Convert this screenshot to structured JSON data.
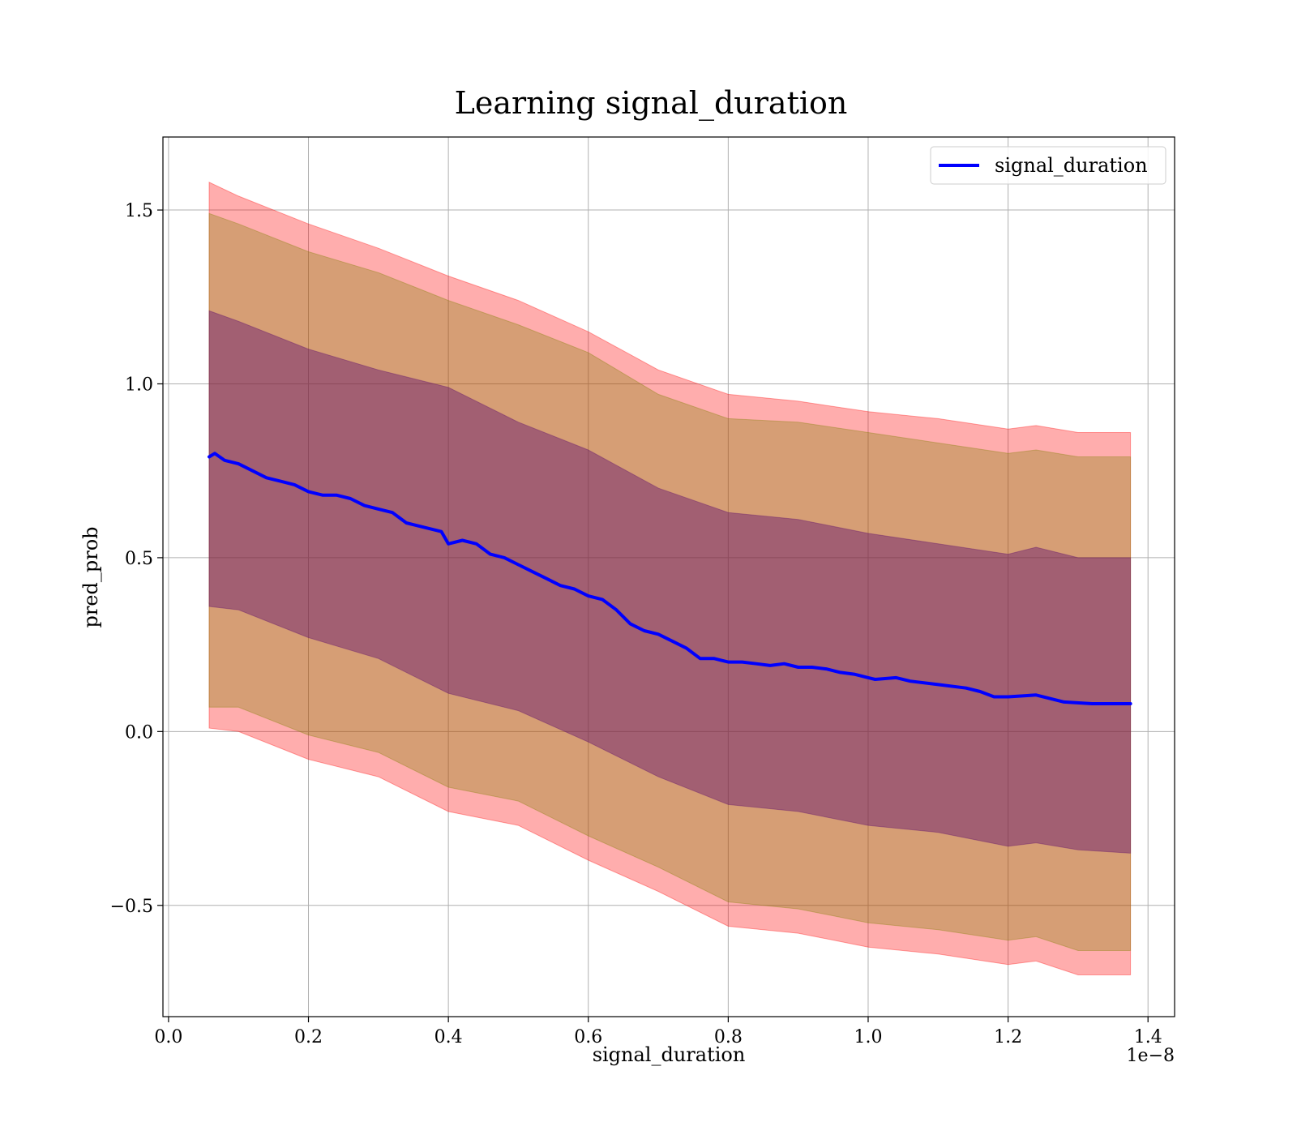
{
  "chart_data": {
    "type": "line",
    "title": "Learning signal_duration",
    "xlabel": "signal_duration",
    "ylabel": "pred_prob",
    "x_offset_label": "1e−8",
    "xlim": [
      -0.008,
      1.438
    ],
    "ylim": [
      -0.82,
      1.71
    ],
    "grid": true,
    "legend_position": "top-right",
    "x_ticks": [
      0.0,
      0.2,
      0.4,
      0.6,
      0.8,
      1.0,
      1.2,
      1.4
    ],
    "x_tick_labels": [
      "0.0",
      "0.2",
      "0.4",
      "0.6",
      "0.8",
      "1.0",
      "1.2",
      "1.4"
    ],
    "y_ticks": [
      -0.5,
      0.0,
      0.5,
      1.0,
      1.5
    ],
    "y_tick_labels": [
      "−0.5",
      "0.0",
      "0.5",
      "1.0",
      "1.5"
    ],
    "series": [
      {
        "name": "signal_duration",
        "color": "#0000ff",
        "x": [
          0.058,
          0.066,
          0.08,
          0.1,
          0.12,
          0.14,
          0.16,
          0.18,
          0.2,
          0.22,
          0.24,
          0.26,
          0.28,
          0.3,
          0.32,
          0.34,
          0.36,
          0.38,
          0.39,
          0.4,
          0.42,
          0.44,
          0.46,
          0.48,
          0.5,
          0.52,
          0.54,
          0.56,
          0.58,
          0.6,
          0.62,
          0.64,
          0.66,
          0.68,
          0.7,
          0.72,
          0.74,
          0.76,
          0.78,
          0.8,
          0.82,
          0.84,
          0.86,
          0.88,
          0.9,
          0.92,
          0.94,
          0.96,
          0.98,
          1.0,
          1.01,
          1.04,
          1.06,
          1.1,
          1.14,
          1.16,
          1.18,
          1.2,
          1.24,
          1.28,
          1.32,
          1.375
        ],
        "y": [
          0.79,
          0.8,
          0.78,
          0.77,
          0.75,
          0.73,
          0.72,
          0.71,
          0.69,
          0.68,
          0.68,
          0.67,
          0.65,
          0.64,
          0.63,
          0.6,
          0.59,
          0.58,
          0.575,
          0.54,
          0.55,
          0.54,
          0.51,
          0.5,
          0.48,
          0.46,
          0.44,
          0.42,
          0.41,
          0.39,
          0.38,
          0.35,
          0.31,
          0.29,
          0.28,
          0.26,
          0.24,
          0.21,
          0.21,
          0.2,
          0.2,
          0.195,
          0.19,
          0.195,
          0.185,
          0.185,
          0.18,
          0.17,
          0.165,
          0.155,
          0.15,
          0.155,
          0.145,
          0.135,
          0.125,
          0.115,
          0.1,
          0.1,
          0.105,
          0.085,
          0.08,
          0.08
        ]
      }
    ],
    "bands": [
      {
        "color": "#ff0000",
        "opacity": 0.32,
        "x": [
          0.058,
          0.1,
          0.2,
          0.3,
          0.4,
          0.5,
          0.6,
          0.7,
          0.8,
          0.9,
          1.0,
          1.1,
          1.2,
          1.24,
          1.3,
          1.375
        ],
        "upper": [
          1.58,
          1.54,
          1.46,
          1.39,
          1.31,
          1.24,
          1.15,
          1.04,
          0.97,
          0.95,
          0.92,
          0.9,
          0.87,
          0.88,
          0.86,
          0.86
        ],
        "lower": [
          0.01,
          0.0,
          -0.08,
          -0.13,
          -0.23,
          -0.27,
          -0.37,
          -0.46,
          -0.56,
          -0.58,
          -0.62,
          -0.64,
          -0.67,
          -0.66,
          -0.7,
          -0.7
        ]
      },
      {
        "color": "#808000",
        "opacity": 0.32,
        "x": [
          0.058,
          0.1,
          0.2,
          0.3,
          0.4,
          0.5,
          0.6,
          0.7,
          0.8,
          0.9,
          1.0,
          1.1,
          1.2,
          1.24,
          1.3,
          1.375
        ],
        "upper": [
          1.49,
          1.46,
          1.38,
          1.32,
          1.24,
          1.17,
          1.09,
          0.97,
          0.9,
          0.89,
          0.86,
          0.83,
          0.8,
          0.81,
          0.79,
          0.79
        ],
        "lower": [
          0.07,
          0.07,
          -0.01,
          -0.06,
          -0.16,
          -0.2,
          -0.3,
          -0.39,
          -0.49,
          -0.51,
          -0.55,
          -0.57,
          -0.6,
          -0.59,
          -0.63,
          -0.63
        ]
      },
      {
        "color": "#5a0a6e",
        "opacity": 0.42,
        "x": [
          0.058,
          0.1,
          0.2,
          0.3,
          0.4,
          0.5,
          0.6,
          0.7,
          0.8,
          0.9,
          1.0,
          1.1,
          1.2,
          1.24,
          1.3,
          1.375
        ],
        "upper": [
          1.21,
          1.18,
          1.1,
          1.04,
          0.99,
          0.89,
          0.81,
          0.7,
          0.63,
          0.61,
          0.57,
          0.54,
          0.51,
          0.53,
          0.5,
          0.5
        ],
        "lower": [
          0.36,
          0.35,
          0.27,
          0.21,
          0.11,
          0.06,
          -0.03,
          -0.13,
          -0.21,
          -0.23,
          -0.27,
          -0.29,
          -0.33,
          -0.32,
          -0.34,
          -0.35
        ]
      }
    ]
  }
}
